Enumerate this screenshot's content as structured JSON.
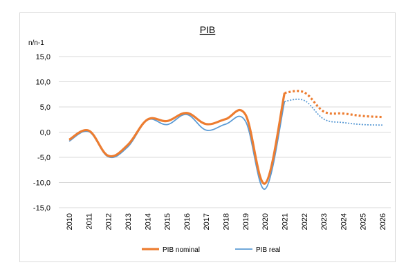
{
  "chart_data": {
    "type": "line",
    "title": "PIB",
    "ylabel": "n/n-1",
    "ylim": [
      -15,
      15
    ],
    "yticks": [
      "15,0",
      "10,0",
      "5,0",
      "0,0",
      "-5,0",
      "-10,0",
      "-15,0"
    ],
    "ytick_values": [
      15,
      10,
      5,
      0,
      -5,
      -10,
      -15
    ],
    "categories": [
      "2010",
      "2011",
      "2012",
      "2013",
      "2014",
      "2015",
      "2016",
      "2017",
      "2018",
      "2019",
      "2020",
      "2021",
      "2022",
      "2023",
      "2024",
      "2025",
      "2026"
    ],
    "forecast_from": "2021",
    "grid": true,
    "legend_position": "bottom",
    "series": [
      {
        "name": "PIB nominal",
        "color": "#ed7d31",
        "values": [
          -1.5,
          0.3,
          -4.7,
          -2.5,
          2.5,
          2.2,
          3.8,
          1.6,
          2.6,
          3.5,
          -10.2,
          7.8,
          7.9,
          4.1,
          3.7,
          3.2,
          3.0
        ]
      },
      {
        "name": "PIB real",
        "color": "#5b9bd5",
        "values": [
          -1.8,
          0.1,
          -4.9,
          -2.9,
          2.4,
          1.5,
          3.5,
          0.4,
          1.6,
          2.2,
          -11.3,
          6.1,
          6.3,
          2.6,
          1.9,
          1.5,
          1.4
        ]
      }
    ]
  }
}
